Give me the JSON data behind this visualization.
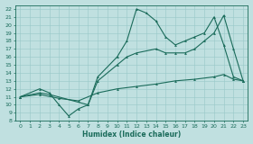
{
  "xlabel": "Humidex (Indice chaleur)",
  "bg_color": "#c0e0e0",
  "line_color": "#1a6b5a",
  "grid_color": "#98c8c8",
  "xlim": [
    -0.5,
    23.5
  ],
  "ylim": [
    8,
    22.5
  ],
  "xticks": [
    0,
    1,
    2,
    3,
    4,
    5,
    6,
    7,
    8,
    9,
    10,
    11,
    12,
    13,
    14,
    15,
    16,
    17,
    18,
    19,
    20,
    21,
    22,
    23
  ],
  "yticks": [
    8,
    9,
    10,
    11,
    12,
    13,
    14,
    15,
    16,
    17,
    18,
    19,
    20,
    21,
    22
  ],
  "line1_x": [
    0,
    2,
    3,
    4,
    5,
    6,
    7,
    8,
    10,
    11,
    12,
    13,
    14,
    15,
    16,
    17,
    18,
    19,
    20,
    21,
    22,
    23
  ],
  "line1_y": [
    11,
    12,
    11.5,
    10,
    8.6,
    9.5,
    10,
    13.5,
    16,
    18,
    22,
    21.5,
    20.5,
    18.5,
    17.5,
    18,
    18.5,
    19,
    21,
    17.5,
    13.5,
    13
  ],
  "line2_x": [
    0,
    2,
    3,
    7,
    8,
    10,
    11,
    12,
    14,
    15,
    16,
    17,
    18,
    19,
    20,
    21,
    22,
    23
  ],
  "line2_y": [
    11,
    11.5,
    11.3,
    10,
    13,
    15,
    16,
    16.5,
    17,
    16.5,
    16.5,
    16.5,
    17,
    18,
    19,
    21.2,
    17,
    13
  ],
  "line3_x": [
    0,
    2,
    4,
    6,
    8,
    10,
    12,
    14,
    16,
    18,
    20,
    21,
    22,
    23
  ],
  "line3_y": [
    11,
    11.3,
    10.8,
    10.5,
    11.5,
    12,
    12.3,
    12.6,
    13,
    13.2,
    13.5,
    13.8,
    13.2,
    13
  ]
}
